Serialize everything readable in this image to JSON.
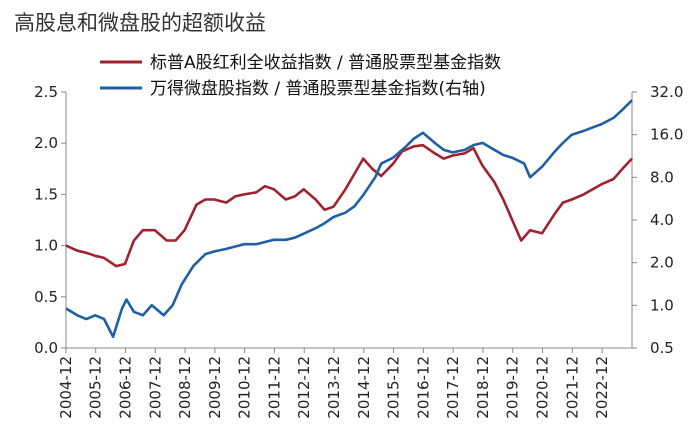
{
  "chart_data": {
    "type": "line",
    "title": "高股息和微盘股的超额收益",
    "xlabel": "",
    "ylabel_left": "",
    "ylabel_right": "",
    "x_ticks": [
      "2004-12",
      "2005-12",
      "2006-12",
      "2007-12",
      "2008-12",
      "2009-12",
      "2010-12",
      "2011-12",
      "2012-12",
      "2013-12",
      "2014-12",
      "2015-12",
      "2016-12",
      "2017-12",
      "2018-12",
      "2019-12",
      "2020-12",
      "2021-12",
      "2022-12"
    ],
    "x_range": [
      2004.92,
      2023.92
    ],
    "y_left": {
      "ticks": [
        "0.0",
        "0.5",
        "1.0",
        "1.5",
        "2.0",
        "2.5"
      ],
      "tick_values": [
        0,
        0.5,
        1.0,
        1.5,
        2.0,
        2.5
      ],
      "ylim": [
        0,
        2.5
      ],
      "scale": "linear"
    },
    "y_right": {
      "ticks": [
        "0.5",
        "1.0",
        "2.0",
        "4.0",
        "8.0",
        "16.0",
        "32.0"
      ],
      "tick_values": [
        0.5,
        1,
        2,
        4,
        8,
        16,
        32
      ],
      "ylim": [
        0.5,
        32
      ],
      "scale": "log2"
    },
    "legend_position": "top-right",
    "grid": false,
    "series": [
      {
        "name": "标普A股红利全收益指数 / 普通股票型基金指数",
        "axis": "left",
        "color": "#a0222d",
        "x": [
          2004.92,
          2005.3,
          2005.6,
          2005.9,
          2006.2,
          2006.6,
          2006.9,
          2007.2,
          2007.5,
          2007.9,
          2008.3,
          2008.6,
          2008.9,
          2009.3,
          2009.6,
          2009.9,
          2010.3,
          2010.6,
          2010.9,
          2011.3,
          2011.6,
          2011.9,
          2012.3,
          2012.6,
          2012.9,
          2013.3,
          2013.6,
          2013.9,
          2014.3,
          2014.6,
          2014.9,
          2015.2,
          2015.5,
          2015.9,
          2016.2,
          2016.6,
          2016.9,
          2017.3,
          2017.6,
          2017.9,
          2018.3,
          2018.6,
          2018.9,
          2019.3,
          2019.6,
          2019.9,
          2020.2,
          2020.5,
          2020.9,
          2021.3,
          2021.6,
          2021.9,
          2022.3,
          2022.6,
          2022.9,
          2023.3,
          2023.6,
          2023.92
        ],
        "y": [
          1.0,
          0.95,
          0.93,
          0.9,
          0.88,
          0.8,
          0.82,
          1.05,
          1.15,
          1.15,
          1.05,
          1.05,
          1.15,
          1.4,
          1.45,
          1.45,
          1.42,
          1.48,
          1.5,
          1.52,
          1.58,
          1.55,
          1.45,
          1.48,
          1.55,
          1.45,
          1.35,
          1.38,
          1.55,
          1.7,
          1.85,
          1.75,
          1.68,
          1.8,
          1.92,
          1.97,
          1.98,
          1.9,
          1.85,
          1.88,
          1.9,
          1.95,
          1.78,
          1.62,
          1.45,
          1.25,
          1.05,
          1.15,
          1.12,
          1.3,
          1.42,
          1.45,
          1.5,
          1.55,
          1.6,
          1.65,
          1.75,
          1.85
        ]
      },
      {
        "name": "万得微盘股指数 / 普通股票型基金指数(右轴)",
        "axis": "right",
        "color": "#1f5fa6",
        "x": [
          2004.92,
          2005.3,
          2005.6,
          2005.9,
          2006.2,
          2006.5,
          2006.8,
          2006.95,
          2007.2,
          2007.5,
          2007.8,
          2008.2,
          2008.5,
          2008.8,
          2009.2,
          2009.6,
          2009.9,
          2010.3,
          2010.6,
          2010.9,
          2011.3,
          2011.6,
          2011.9,
          2012.3,
          2012.6,
          2012.9,
          2013.3,
          2013.6,
          2013.9,
          2014.3,
          2014.6,
          2014.9,
          2015.3,
          2015.5,
          2015.9,
          2016.3,
          2016.6,
          2016.9,
          2017.3,
          2017.6,
          2017.9,
          2018.3,
          2018.6,
          2018.9,
          2019.3,
          2019.6,
          2019.9,
          2020.3,
          2020.5,
          2020.9,
          2021.3,
          2021.6,
          2021.9,
          2022.3,
          2022.6,
          2022.9,
          2023.3,
          2023.6,
          2023.92
        ],
        "y": [
          0.95,
          0.85,
          0.8,
          0.85,
          0.8,
          0.6,
          0.95,
          1.1,
          0.9,
          0.85,
          1.0,
          0.85,
          1.0,
          1.4,
          1.9,
          2.3,
          2.4,
          2.5,
          2.6,
          2.7,
          2.7,
          2.8,
          2.9,
          2.9,
          3.0,
          3.2,
          3.5,
          3.8,
          4.2,
          4.5,
          5.0,
          6.0,
          8.0,
          10.0,
          11.0,
          13.0,
          15.0,
          16.5,
          14.0,
          12.5,
          12.0,
          12.5,
          13.5,
          14.0,
          12.5,
          11.5,
          11.0,
          10.0,
          8.0,
          9.5,
          12.0,
          14.0,
          16.0,
          17.0,
          18.0,
          19.0,
          21.0,
          24.0,
          28.0
        ]
      }
    ]
  }
}
